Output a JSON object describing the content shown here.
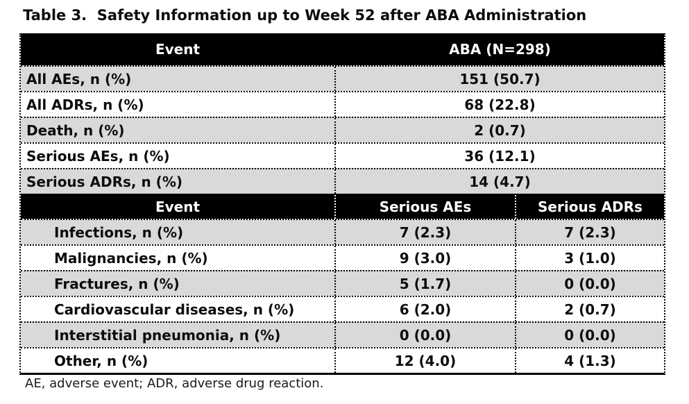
{
  "title": "Table 3.  Safety Information up to Week 52 after ABA Administration",
  "footnote": "AE, adverse event; ADR, adverse drug reaction.",
  "colors": {
    "header_bg": "#000000",
    "header_text": "#ffffff",
    "row_alt_bg": "#d9d9d9",
    "row_bg": "#ffffff",
    "border": "#000000",
    "text": "#0d0d0d"
  },
  "summary_table": {
    "headers": [
      "Event",
      "ABA (N=298)"
    ],
    "rows": [
      {
        "label": "All AEs, n (%)",
        "value": "151 (50.7)"
      },
      {
        "label": "All ADRs, n (%)",
        "value": "68 (22.8)"
      },
      {
        "label": "Death, n (%)",
        "value": "2 (0.7)"
      },
      {
        "label": "Serious AEs, n (%)",
        "value": "36 (12.1)"
      },
      {
        "label": "Serious ADRs, n (%)",
        "value": "14 (4.7)"
      }
    ]
  },
  "detail_table": {
    "headers": [
      "Event",
      "Serious AEs",
      "Serious ADRs"
    ],
    "rows": [
      {
        "label": "Infections, n (%)",
        "serious_aes": "7 (2.3)",
        "serious_adrs": "7 (2.3)"
      },
      {
        "label": "Malignancies, n (%)",
        "serious_aes": "9 (3.0)",
        "serious_adrs": "3 (1.0)"
      },
      {
        "label": "Fractures, n (%)",
        "serious_aes": "5 (1.7)",
        "serious_adrs": "0 (0.0)"
      },
      {
        "label": "Cardiovascular diseases, n (%)",
        "serious_aes": "6 (2.0)",
        "serious_adrs": "2 (0.7)"
      },
      {
        "label": "Interstitial pneumonia, n (%)",
        "serious_aes": "0 (0.0)",
        "serious_adrs": "0 (0.0)"
      },
      {
        "label": "Other, n (%)",
        "serious_aes": "12 (4.0)",
        "serious_adrs": "4 (1.3)"
      }
    ]
  }
}
